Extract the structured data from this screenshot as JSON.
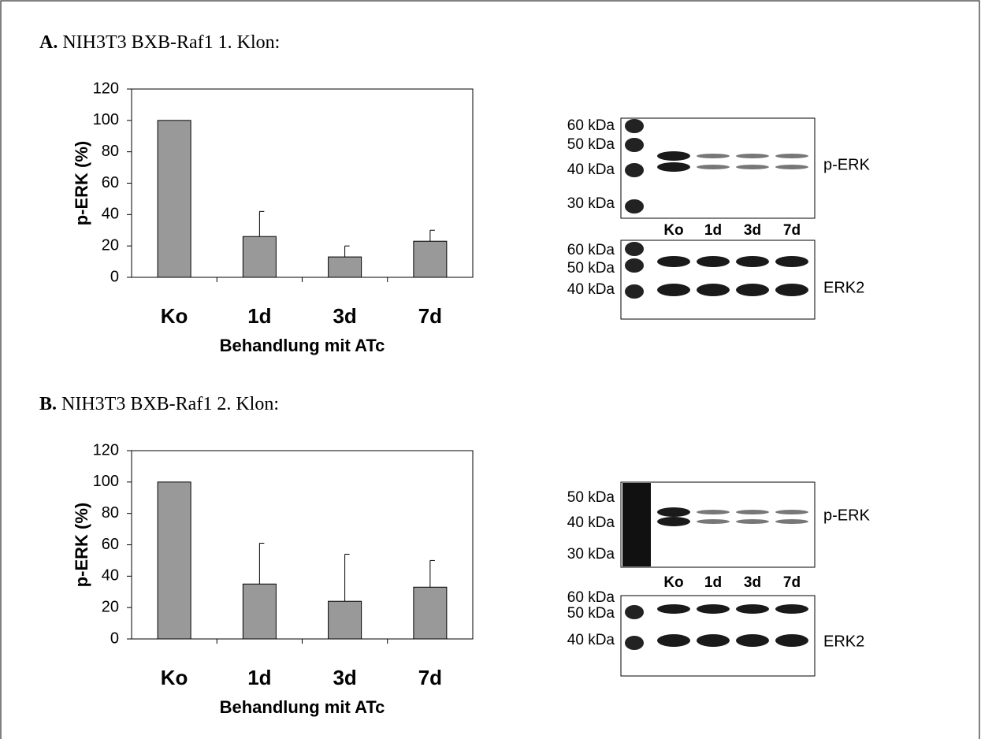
{
  "panels": [
    {
      "letter": "A.",
      "title": "NIH3T3 BXB-Raf1 1. Klon:"
    },
    {
      "letter": "B.",
      "title": "NIH3T3 BXB-Raf1 2. Klon:"
    }
  ],
  "chart_data": [
    {
      "type": "bar",
      "categories": [
        "Ko",
        "1d",
        "3d",
        "7d"
      ],
      "values": [
        100,
        26,
        13,
        23
      ],
      "errors": [
        0,
        16,
        7,
        7
      ],
      "color": "#999999",
      "ylim": [
        0,
        120
      ],
      "yticks": [
        0,
        20,
        40,
        60,
        80,
        100,
        120
      ],
      "y_label": "p-ERK (%)",
      "x_label": "Behandlung mit ATc"
    },
    {
      "type": "bar",
      "categories": [
        "Ko",
        "1d",
        "3d",
        "7d"
      ],
      "values": [
        100,
        35,
        24,
        33
      ],
      "errors": [
        0,
        26,
        30,
        17
      ],
      "color": "#999999",
      "ylim": [
        0,
        120
      ],
      "yticks": [
        0,
        20,
        40,
        60,
        80,
        100,
        120
      ],
      "y_label": "p-ERK (%)",
      "x_label": "Behandlung mit ATc"
    }
  ],
  "blots": [
    {
      "upper": {
        "markers": [
          "60 kDa",
          "50 kDa",
          "40 kDa",
          "30 kDa"
        ],
        "label": "p-ERK"
      },
      "lanes": [
        "Ko",
        "1d",
        "3d",
        "7d"
      ],
      "lower": {
        "markers": [
          "60 kDa",
          "50 kDa",
          "40 kDa"
        ],
        "label": "ERK2"
      }
    },
    {
      "upper": {
        "markers": [
          "50 kDa",
          "40 kDa",
          "30 kDa"
        ],
        "label": "p-ERK"
      },
      "lanes": [
        "Ko",
        "1d",
        "3d",
        "7d"
      ],
      "lower": {
        "markers": [
          "60 kDa",
          "50 kDa",
          "40 kDa"
        ],
        "label": "ERK2"
      }
    }
  ]
}
